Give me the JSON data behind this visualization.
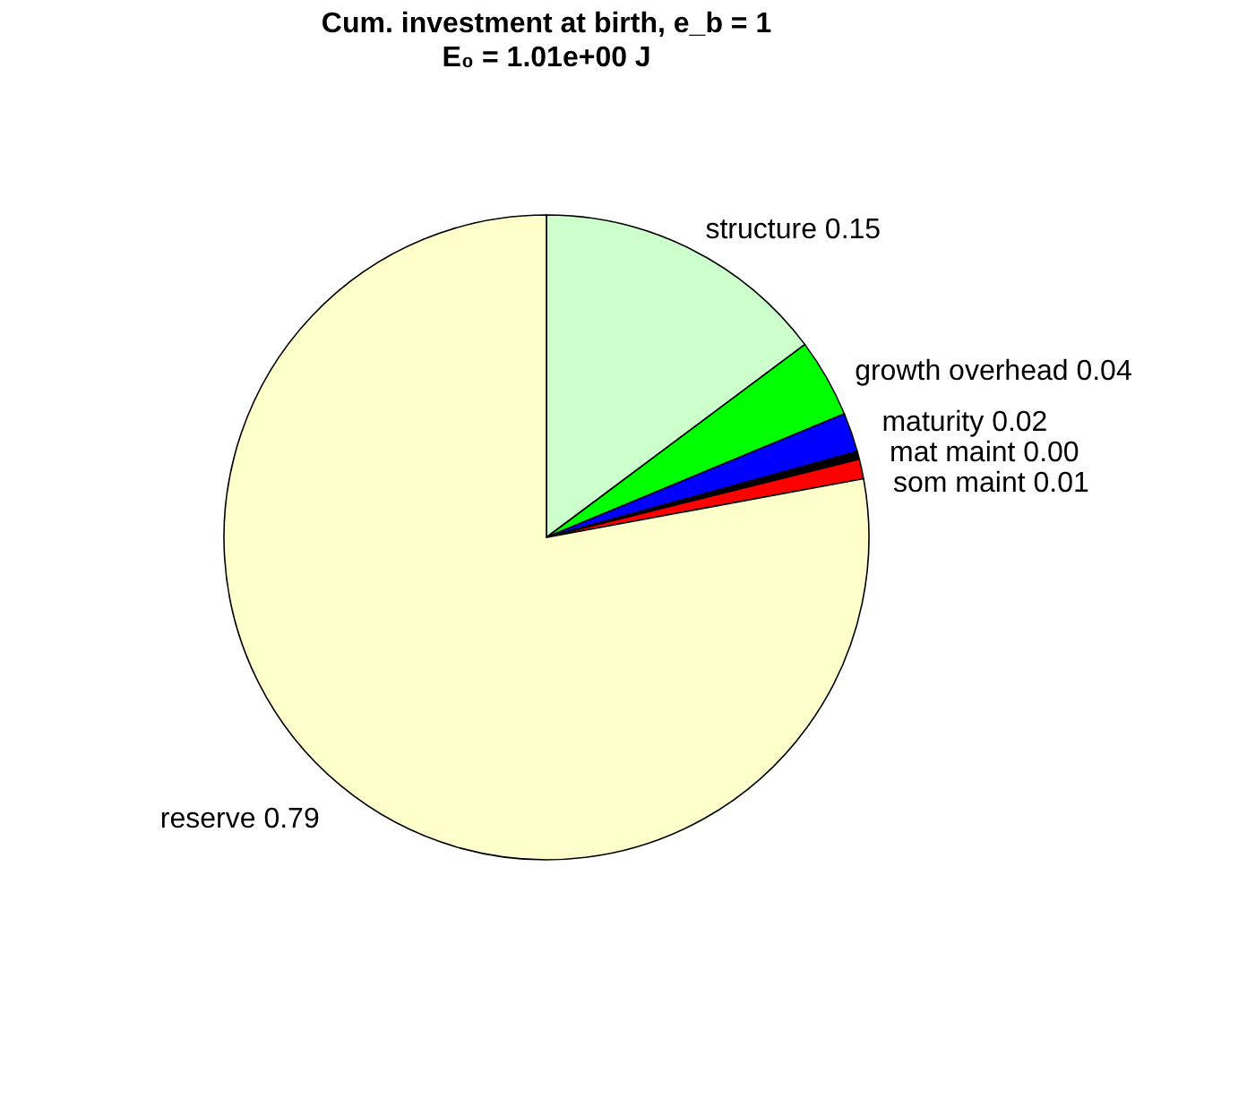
{
  "chart_data": {
    "type": "pie",
    "title": "Cum. investment at birth, e_b = 1",
    "subtitle": "E₀ = 1.01e+00 J",
    "categories": [
      "structure",
      "growth overhead",
      "maturity",
      "mat maint",
      "som maint",
      "reserve"
    ],
    "values": [
      0.15,
      0.04,
      0.02,
      0.004,
      0.01,
      0.79
    ],
    "value_labels": [
      "0.15",
      "0.04",
      "0.02",
      "0.00",
      "0.01",
      "0.79"
    ],
    "colors": [
      "#ccffcc",
      "#00ff00",
      "#0000ff",
      "#000000",
      "#ff0000",
      "#ffffcc"
    ],
    "legend": false
  }
}
